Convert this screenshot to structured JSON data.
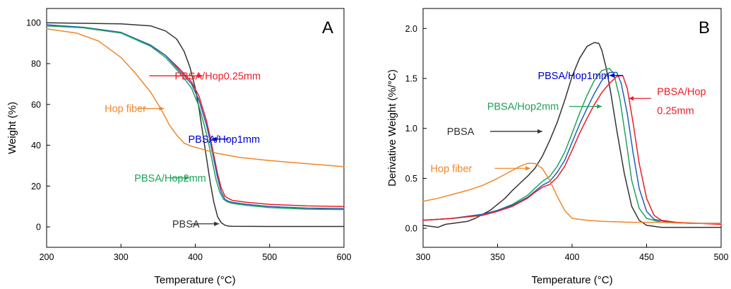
{
  "chart_data": [
    {
      "type": "line",
      "panel_label": "A",
      "xlabel": "Temperature (°C)",
      "ylabel": "Weight (%)",
      "xlim": [
        200,
        600
      ],
      "ylim": [
        -10,
        107
      ],
      "xticks": [
        200,
        300,
        400,
        500,
        600
      ],
      "yticks": [
        0,
        20,
        40,
        60,
        80,
        100
      ],
      "series": [
        {
          "key": "pbsa",
          "color": "#333333",
          "x": [
            200,
            300,
            340,
            360,
            375,
            385,
            393,
            400,
            405,
            410,
            415,
            420,
            425,
            430,
            435,
            440,
            445,
            450,
            500,
            600
          ],
          "y": [
            100,
            99.5,
            98.5,
            96,
            92,
            86,
            78,
            68,
            58,
            46,
            34,
            22,
            12,
            5,
            2,
            0.8,
            0.4,
            0.3,
            0.2,
            0.2
          ]
        },
        {
          "key": "hop025",
          "color": "#ee1c24",
          "x": [
            200,
            250,
            300,
            340,
            360,
            380,
            395,
            405,
            415,
            420,
            425,
            430,
            435,
            440,
            445,
            450,
            470,
            500,
            550,
            600
          ],
          "y": [
            99,
            97.5,
            95,
            89,
            84,
            77,
            71,
            64,
            52,
            44,
            35,
            26,
            19,
            15,
            13.8,
            13,
            12,
            11,
            10.3,
            10
          ]
        },
        {
          "key": "hop1",
          "color": "#1e5fbf",
          "x": [
            200,
            250,
            300,
            340,
            360,
            380,
            395,
            405,
            415,
            420,
            425,
            430,
            435,
            440,
            445,
            450,
            470,
            500,
            550,
            600
          ],
          "y": [
            99,
            97.8,
            95.3,
            89,
            84,
            76,
            70,
            62,
            50,
            42,
            33,
            24,
            17,
            13.5,
            12.5,
            12,
            11,
            10,
            9.2,
            9
          ]
        },
        {
          "key": "hop2",
          "color": "#1fa35a",
          "x": [
            200,
            250,
            300,
            340,
            360,
            380,
            395,
            405,
            412,
            418,
            423,
            428,
            433,
            438,
            443,
            450,
            470,
            500,
            550,
            600
          ],
          "y": [
            98.5,
            97.5,
            95,
            88.5,
            83,
            75,
            68,
            59,
            50,
            41,
            32,
            23,
            17,
            13.5,
            12.3,
            11.5,
            10.5,
            9.5,
            8.7,
            8.5
          ]
        },
        {
          "key": "hop_fiber",
          "color": "#f0862a",
          "x": [
            200,
            240,
            270,
            300,
            320,
            340,
            355,
            365,
            375,
            385,
            395,
            410,
            430,
            460,
            500,
            550,
            600
          ],
          "y": [
            97,
            95,
            91,
            83,
            75,
            66,
            57,
            50,
            45,
            41,
            39.5,
            38,
            36,
            34,
            32.5,
            31,
            29.5
          ]
        }
      ],
      "annotations": [
        {
          "text": "PBSA/Hop0.25mm",
          "color": "#ee1c24",
          "tx": 488,
          "ty": 74,
          "anchor": "end",
          "ax1": 338,
          "ax2": 410,
          "ay": 74
        },
        {
          "text": "Hop fiber",
          "color": "#f0862a",
          "tx": 278,
          "ty": 58,
          "anchor": "start",
          "ax1": 323,
          "ax2": 358,
          "ay": 58
        },
        {
          "text": "PBSA/Hop1mm",
          "color": "#0000cc",
          "tx": 487,
          "ty": 43,
          "anchor": "end",
          "ax1": 445,
          "ax2": 422,
          "ay": 43
        },
        {
          "text": "PBSA/Hop2mm",
          "color": "#1fa35a",
          "tx": 318,
          "ty": 24,
          "anchor": "start",
          "ax1": 366,
          "ax2": 392,
          "ay": 24
        },
        {
          "text": "PBSA",
          "color": "#333333",
          "tx": 369,
          "ty": 1.5,
          "anchor": "start",
          "ax1": 395,
          "ax2": 432,
          "ay": 1.5
        }
      ]
    },
    {
      "type": "line",
      "panel_label": "B",
      "xlabel": "Temperature (°C)",
      "ylabel": "Derivative Weight (%/°C)",
      "xlim": [
        300,
        500
      ],
      "ylim": [
        -0.19,
        2.2
      ],
      "xticks": [
        300,
        350,
        400,
        450,
        500
      ],
      "yticks": [
        0.0,
        0.5,
        1.0,
        1.5,
        2.0
      ],
      "ytick_labels": [
        "0.0",
        "0.5",
        "1.0",
        "1.5",
        "2.0"
      ],
      "series": [
        {
          "key": "pbsa",
          "color": "#333333",
          "x": [
            300,
            305,
            310,
            315,
            320,
            325,
            330,
            335,
            340,
            345,
            350,
            355,
            360,
            365,
            370,
            375,
            380,
            385,
            390,
            395,
            400,
            405,
            410,
            415,
            418,
            420,
            423,
            426,
            430,
            435,
            440,
            445,
            450,
            460,
            470,
            500
          ],
          "y": [
            0.03,
            0.02,
            0.01,
            0.04,
            0.05,
            0.06,
            0.07,
            0.1,
            0.14,
            0.18,
            0.24,
            0.3,
            0.38,
            0.45,
            0.52,
            0.6,
            0.72,
            0.88,
            1.06,
            1.28,
            1.52,
            1.7,
            1.82,
            1.86,
            1.85,
            1.78,
            1.6,
            1.35,
            0.98,
            0.55,
            0.22,
            0.08,
            0.03,
            0.01,
            0.01,
            0.01
          ]
        },
        {
          "key": "hop2",
          "color": "#1fa35a",
          "x": [
            300,
            320,
            340,
            350,
            360,
            370,
            375,
            380,
            385,
            390,
            395,
            400,
            405,
            410,
            415,
            420,
            425,
            428,
            432,
            436,
            440,
            445,
            450,
            460,
            480,
            500
          ],
          "y": [
            0.08,
            0.1,
            0.14,
            0.18,
            0.24,
            0.33,
            0.4,
            0.47,
            0.52,
            0.62,
            0.76,
            0.95,
            1.15,
            1.33,
            1.48,
            1.58,
            1.6,
            1.55,
            1.3,
            0.9,
            0.48,
            0.2,
            0.1,
            0.06,
            0.05,
            0.05
          ]
        },
        {
          "key": "hop1",
          "color": "#1e5fbf",
          "x": [
            300,
            320,
            340,
            350,
            360,
            370,
            375,
            380,
            385,
            390,
            395,
            400,
            405,
            410,
            415,
            420,
            425,
            430,
            433,
            437,
            441,
            445,
            450,
            455,
            465,
            480,
            500
          ],
          "y": [
            0.08,
            0.1,
            0.14,
            0.18,
            0.23,
            0.31,
            0.37,
            0.43,
            0.47,
            0.56,
            0.68,
            0.86,
            1.04,
            1.2,
            1.35,
            1.48,
            1.56,
            1.56,
            1.45,
            1.15,
            0.75,
            0.4,
            0.17,
            0.09,
            0.06,
            0.05,
            0.05
          ]
        },
        {
          "key": "hop025",
          "color": "#ee1c24",
          "x": [
            300,
            320,
            340,
            350,
            360,
            370,
            375,
            380,
            385,
            390,
            395,
            400,
            405,
            410,
            415,
            420,
            425,
            430,
            434,
            437,
            441,
            445,
            450,
            455,
            460,
            470,
            485,
            500
          ],
          "y": [
            0.08,
            0.1,
            0.13,
            0.17,
            0.22,
            0.3,
            0.36,
            0.41,
            0.44,
            0.51,
            0.62,
            0.78,
            0.95,
            1.1,
            1.24,
            1.36,
            1.45,
            1.52,
            1.53,
            1.4,
            1.05,
            0.65,
            0.3,
            0.13,
            0.08,
            0.06,
            0.05,
            0.04
          ]
        },
        {
          "key": "hop_fiber",
          "color": "#f0862a",
          "x": [
            300,
            310,
            320,
            330,
            340,
            350,
            360,
            365,
            370,
            375,
            380,
            385,
            390,
            395,
            400,
            410,
            420,
            440,
            460,
            480,
            500
          ],
          "y": [
            0.27,
            0.3,
            0.34,
            0.38,
            0.43,
            0.5,
            0.58,
            0.62,
            0.65,
            0.65,
            0.6,
            0.48,
            0.32,
            0.18,
            0.1,
            0.08,
            0.07,
            0.06,
            0.06,
            0.05,
            0.05
          ]
        }
      ],
      "annotations": [
        {
          "text": "PBSA/Hop1mm",
          "color": "#0000cc",
          "tx": 377,
          "ty": 1.53,
          "anchor": "start",
          "ax1": 434,
          "ax2": 425,
          "ay": 1.53
        },
        {
          "text": "PBSA/Hop2mm",
          "color": "#1fa35a",
          "tx": 343,
          "ty": 1.22,
          "anchor": "start",
          "ax1": 398,
          "ax2": 420,
          "ay": 1.22
        },
        {
          "text": "PBSA/Hop",
          "color": "#ee1c24",
          "tx": 457,
          "ty": 1.37,
          "anchor": "start",
          "ax1": 453,
          "ax2": 438,
          "ay": 1.3
        },
        {
          "text": "0.25mm",
          "color": "#ee1c24",
          "tx": 457,
          "ty": 1.18,
          "anchor": "start"
        },
        {
          "text": "PBSA",
          "color": "#333333",
          "tx": 316,
          "ty": 0.97,
          "anchor": "start",
          "ax1": 345,
          "ax2": 380,
          "ay": 0.97
        },
        {
          "text": "Hop fiber",
          "color": "#f0862a",
          "tx": 305,
          "ty": 0.6,
          "anchor": "start",
          "ax1": 348,
          "ax2": 372,
          "ay": 0.6
        }
      ]
    }
  ]
}
